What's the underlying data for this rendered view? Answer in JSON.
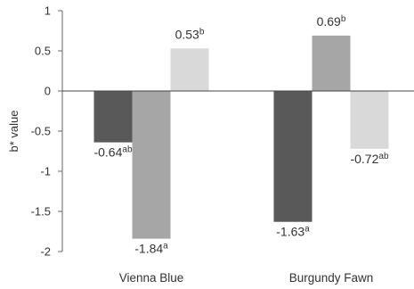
{
  "chart_data": {
    "type": "bar",
    "ylabel": "b* value",
    "xlabel": "",
    "ylim": [
      -2,
      1
    ],
    "yticks": [
      1,
      0.5,
      0,
      -0.5,
      -1,
      -1.5,
      -2
    ],
    "ytick_labels": [
      "1",
      "0.5",
      "0",
      "-0.5",
      "-1",
      "-1.5",
      "-2"
    ],
    "categories": [
      "Vienna Blue",
      "Burgundy Fawn"
    ],
    "grid": false,
    "series": [
      {
        "color": "#595959",
        "values": [
          -0.64,
          -1.63
        ],
        "labels": [
          "-0.64",
          "-1.63"
        ],
        "sig": [
          "ab",
          "a"
        ]
      },
      {
        "color": "#a6a6a6",
        "values": [
          -1.84,
          0.69
        ],
        "labels": [
          "-1.84",
          "0.69"
        ],
        "sig": [
          "a",
          "b"
        ]
      },
      {
        "color": "#d9d9d9",
        "values": [
          0.53,
          -0.72
        ],
        "labels": [
          "0.53",
          "-0.72"
        ],
        "sig": [
          "b",
          "ab"
        ]
      }
    ]
  }
}
